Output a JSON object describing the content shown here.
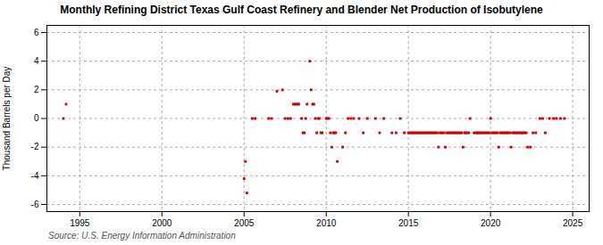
{
  "chart_data": {
    "type": "scatter",
    "title": "Monthly Refining District Texas Gulf Coast Refinery and Blender Net Production of Isobutylene",
    "ylabel": "Thousand Barrels per Day",
    "source": "Source: U.S. Energy Information Administration",
    "color": "#cc0000",
    "marker": "square",
    "grid": true,
    "xlim": [
      1993.0,
      2026.0
    ],
    "ylim": [
      -6.5,
      6.5
    ],
    "xticks": [
      1995,
      2000,
      2005,
      2010,
      2015,
      2020,
      2025
    ],
    "yticks": [
      -6,
      -4,
      -2,
      0,
      2,
      4,
      6
    ],
    "x": [
      1994.0,
      1994.17,
      2005.0,
      2005.08,
      2005.17,
      2005.5,
      2005.67,
      2006.5,
      2006.67,
      2007.0,
      2007.33,
      2007.5,
      2007.67,
      2007.83,
      2008.0,
      2008.08,
      2008.17,
      2008.25,
      2008.33,
      2008.5,
      2008.58,
      2008.67,
      2008.75,
      2008.83,
      2009.0,
      2009.08,
      2009.17,
      2009.25,
      2009.33,
      2009.42,
      2009.5,
      2009.58,
      2009.67,
      2009.75,
      2010.0,
      2010.08,
      2010.17,
      2010.25,
      2010.33,
      2010.42,
      2010.5,
      2010.58,
      2010.67,
      2011.0,
      2011.17,
      2011.33,
      2011.5,
      2011.67,
      2012.0,
      2012.25,
      2012.5,
      2013.0,
      2013.25,
      2013.5,
      2014.0,
      2014.25,
      2014.5,
      2014.75,
      2015.0,
      2015.08,
      2015.17,
      2015.25,
      2015.33,
      2015.42,
      2015.5,
      2015.58,
      2015.67,
      2015.75,
      2015.83,
      2015.92,
      2016.0,
      2016.08,
      2016.17,
      2016.25,
      2016.33,
      2016.42,
      2016.5,
      2016.58,
      2016.67,
      2016.75,
      2016.83,
      2016.92,
      2017.0,
      2017.08,
      2017.17,
      2017.25,
      2017.33,
      2017.42,
      2017.5,
      2017.58,
      2017.67,
      2017.75,
      2017.83,
      2017.92,
      2018.0,
      2018.08,
      2018.17,
      2018.25,
      2018.33,
      2018.42,
      2018.5,
      2018.58,
      2018.67,
      2018.75,
      2019.0,
      2019.08,
      2019.17,
      2019.25,
      2019.33,
      2019.42,
      2019.5,
      2019.58,
      2019.67,
      2019.75,
      2019.83,
      2019.92,
      2020.0,
      2020.08,
      2020.17,
      2020.25,
      2020.33,
      2020.42,
      2020.5,
      2020.58,
      2020.67,
      2020.75,
      2020.83,
      2020.92,
      2021.0,
      2021.08,
      2021.17,
      2021.25,
      2021.33,
      2021.42,
      2021.5,
      2021.58,
      2021.67,
      2021.75,
      2021.83,
      2021.92,
      2022.0,
      2022.08,
      2022.17,
      2022.25,
      2022.42,
      2022.58,
      2022.75,
      2023.0,
      2023.17,
      2023.33,
      2023.58,
      2023.83,
      2024.0,
      2024.25,
      2024.5
    ],
    "values": [
      0.0,
      1.0,
      -4.2,
      -3.0,
      -5.2,
      0.0,
      0.0,
      0.0,
      0.0,
      1.9,
      2.0,
      0.0,
      0.0,
      0.0,
      1.0,
      1.0,
      1.0,
      1.0,
      1.0,
      0.0,
      -1.0,
      -1.0,
      0.0,
      1.0,
      4.0,
      2.0,
      1.0,
      1.0,
      0.0,
      -1.0,
      0.0,
      0.0,
      -1.0,
      -1.0,
      0.0,
      0.0,
      0.0,
      -1.0,
      -2.0,
      -1.0,
      -1.0,
      -1.0,
      -3.0,
      -2.0,
      -1.0,
      0.0,
      0.0,
      0.0,
      0.0,
      -1.0,
      0.0,
      0.0,
      -1.0,
      0.0,
      -1.0,
      -1.0,
      0.0,
      -1.0,
      -1.0,
      -1.0,
      -1.0,
      -1.0,
      -1.0,
      -1.0,
      -1.0,
      -1.0,
      -1.0,
      -1.0,
      -1.0,
      -1.0,
      -1.0,
      -1.0,
      -1.0,
      -1.0,
      -1.0,
      -1.0,
      -1.0,
      -1.0,
      -1.0,
      -1.0,
      -2.0,
      -1.0,
      -1.0,
      -1.0,
      -1.0,
      -2.0,
      -1.0,
      -1.0,
      -1.0,
      -1.0,
      -1.0,
      -1.0,
      -1.0,
      -1.0,
      -1.0,
      -1.0,
      -1.0,
      -1.0,
      -2.0,
      -1.0,
      -1.0,
      -1.0,
      -1.0,
      0.0,
      -1.0,
      -1.0,
      -1.0,
      -1.0,
      -1.0,
      -1.0,
      -1.0,
      -1.0,
      -1.0,
      -1.0,
      -1.0,
      -1.0,
      0.0,
      -1.0,
      -1.0,
      -1.0,
      -1.0,
      -1.0,
      -2.0,
      -1.0,
      -1.0,
      -1.0,
      -1.0,
      -1.0,
      -1.0,
      -1.0,
      -1.0,
      -2.0,
      -1.0,
      -1.0,
      -1.0,
      -1.0,
      -1.0,
      -1.0,
      -1.0,
      -1.0,
      -1.0,
      -1.0,
      -1.0,
      -2.0,
      -2.0,
      -1.0,
      -1.0,
      0.0,
      0.0,
      -1.0,
      0.0,
      0.0,
      0.0,
      0.0,
      0.0
    ]
  }
}
